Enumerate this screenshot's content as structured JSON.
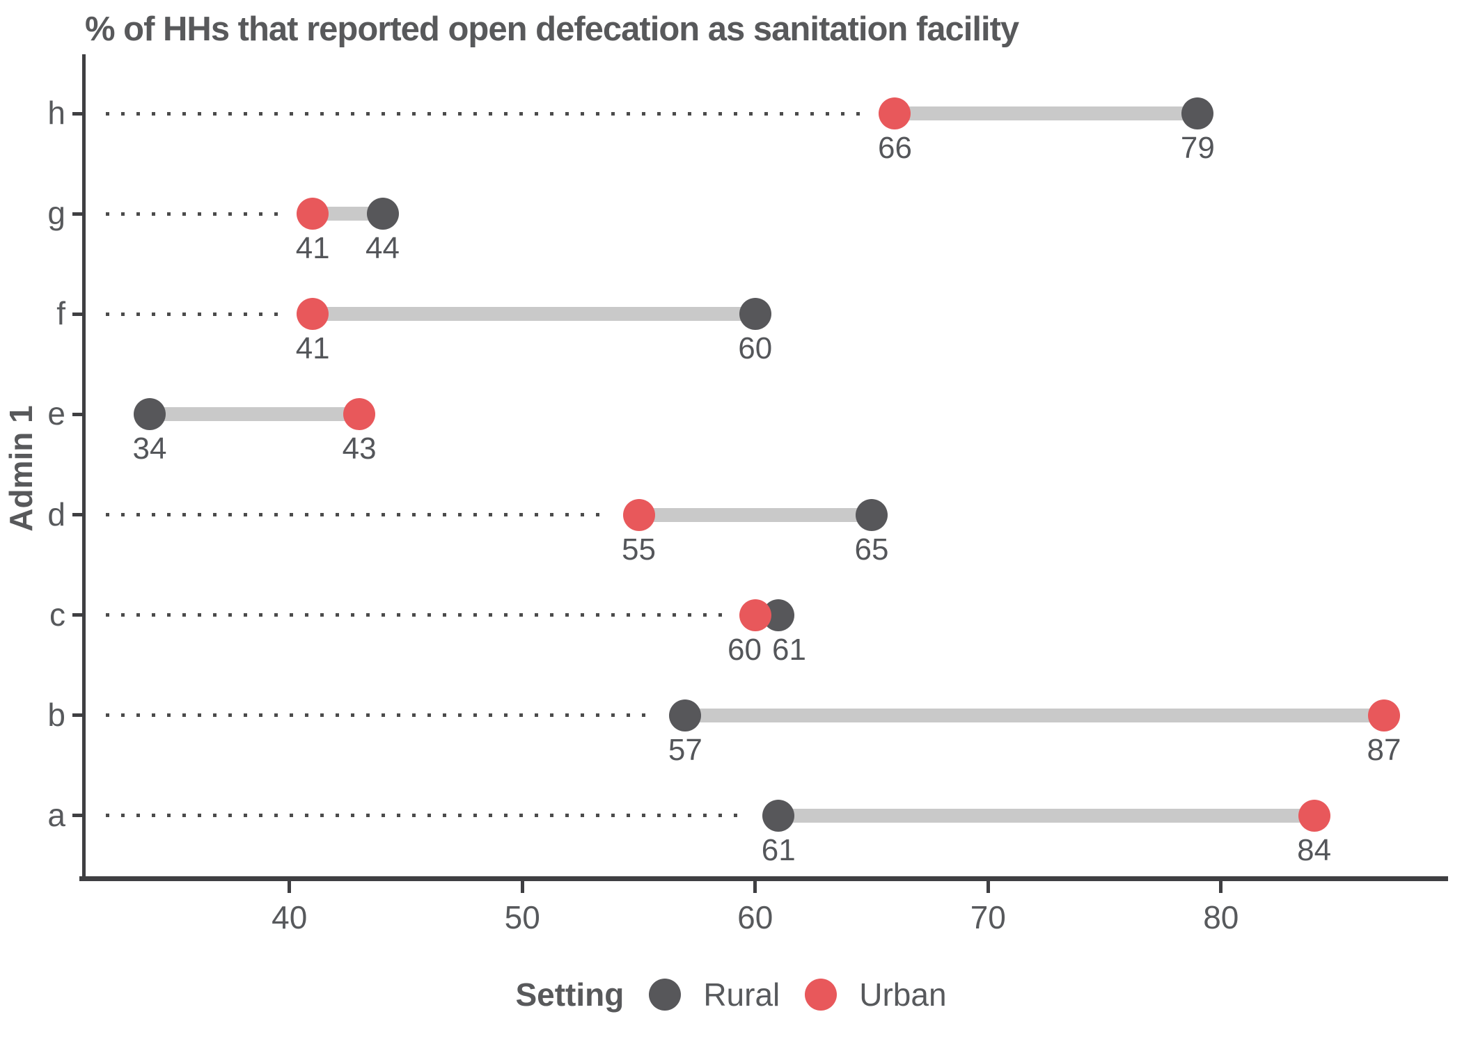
{
  "title": "% of HHs that reported open defecation as sanitation facility",
  "y_axis_label": "Admin 1",
  "legend": {
    "title": "Setting",
    "items": [
      {
        "label": "Rural",
        "color": "#57575A"
      },
      {
        "label": "Urban",
        "color": "#E8585B"
      }
    ]
  },
  "colors": {
    "rural": "#57575A",
    "urban": "#E8585B",
    "connector_bar": "#C9C9C9",
    "leader_dots": "#4B4B4B",
    "axis": "#3F3F42",
    "text": "#58595B"
  },
  "chart_data": {
    "type": "dumbbell",
    "title": "% of HHs that reported open defecation as sanitation facility",
    "categories": [
      "h",
      "g",
      "f",
      "e",
      "d",
      "c",
      "b",
      "a"
    ],
    "series": [
      {
        "name": "Rural",
        "color": "#57575A",
        "values": [
          79,
          44,
          60,
          34,
          65,
          61,
          57,
          61
        ]
      },
      {
        "name": "Urban",
        "color": "#E8585B",
        "values": [
          66,
          41,
          41,
          43,
          55,
          60,
          87,
          84
        ]
      }
    ],
    "xlabel": "",
    "ylabel": "Admin 1",
    "x_ticks": [
      40,
      50,
      60,
      70,
      80
    ],
    "xlim": [
      31.1,
      89.9
    ],
    "grid": false,
    "value_labels": true,
    "legend_position": "bottom",
    "legend_title": "Setting"
  }
}
